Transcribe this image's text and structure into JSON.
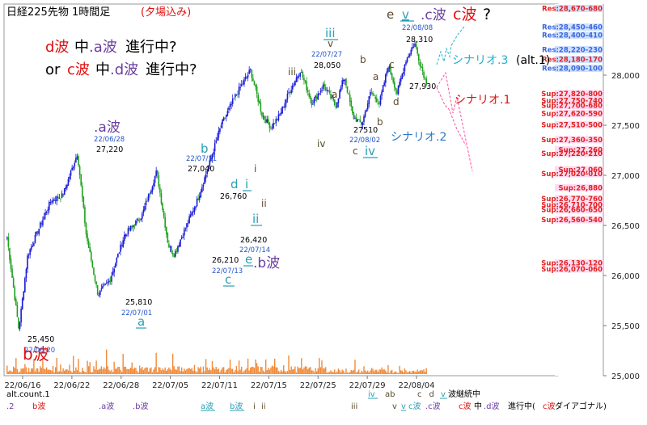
{
  "chart_data": {
    "type": "candlestick",
    "title": "日経225先物 1時間足",
    "title_note": "(夕場込み)",
    "y_ticks": [
      "28,000",
      "27,500",
      "27,000",
      "26,500",
      "26,000",
      "25,500",
      "25,000"
    ],
    "x_ticks": [
      "22/06/16",
      "22/06/22",
      "22/06/28",
      "22/07/05",
      "22/07/11",
      "22/07/15",
      "22/07/25",
      "22/07/29",
      "22/08/04"
    ],
    "headline": {
      "prefix": "e",
      "v_label": "v",
      "a": ".c波",
      "b": "c波",
      "c": "?"
    },
    "scenario_text": {
      "line1_a": "d波",
      "line1_b": "中",
      "line1_c": ".a波",
      "line1_d": "進行中?",
      "line2_a": "or ",
      "line2_b": "c波",
      "line2_c": "中",
      "line2_d": ".d波",
      "line2_e": "進行中?"
    },
    "scenarios": [
      "シナリオ.3",
      "(alt.1)",
      "シナリオ.1",
      "シナリオ.2"
    ],
    "resistance_levels": [
      "Res:28,670-680",
      "Res:28,450-460",
      "Res:28,400-410",
      "Res:28,220-230",
      "Res:28,180-170",
      "Res:28,090-100"
    ],
    "support_levels": [
      "Sup:27,820-800",
      "Sup:27,750-740",
      "Sup:27,700-680",
      "Sup:27,620-590",
      "Sup:27,510-500",
      "Sup:27,360-350",
      "Sup:27,260",
      "Sup:27,220-210",
      "Sup:27,060",
      "Sup:27,020-010",
      "Sup:26,880",
      "Sup:26,770-760",
      "Sup:26,710-700",
      "Sup:26,660-650",
      "Sup:26,560-540",
      "Sup:26,130-120",
      "Sup:26,070-060"
    ],
    "annotations": [
      {
        "id": "b-wave",
        "text": "b波"
      },
      {
        "id": "a-wave-main",
        "text": ".a波"
      },
      {
        "id": "a-date",
        "text": "22/06/28"
      },
      {
        "id": "a-price",
        "text": "27,220"
      },
      {
        "id": "low1-price",
        "text": "25,450"
      },
      {
        "id": "low1-date",
        "text": "22/06/20"
      },
      {
        "id": "low2-price",
        "text": "25,810"
      },
      {
        "id": "low2-date",
        "text": "22/07/01"
      },
      {
        "id": "low2-a",
        "text": "a"
      },
      {
        "id": "b-letter",
        "text": "b"
      },
      {
        "id": "b-date",
        "text": "22/07/11"
      },
      {
        "id": "b-price",
        "text": "27,040"
      },
      {
        "id": "d-letter",
        "text": "d"
      },
      {
        "id": "i-letter",
        "text": "i"
      },
      {
        "id": "i-small",
        "text": "i"
      },
      {
        "id": "ii-small",
        "text": "ii"
      },
      {
        "id": "p26760",
        "text": "26,760"
      },
      {
        "id": "ii-main",
        "text": "ii"
      },
      {
        "id": "p26420",
        "text": "26,420"
      },
      {
        "id": "d0714",
        "text": "22/07/14"
      },
      {
        "id": "p26210",
        "text": "26,210"
      },
      {
        "id": "d0713",
        "text": "22/07/13"
      },
      {
        "id": "e-letter",
        "text": "e"
      },
      {
        "id": "b-wave2",
        "text": ".b波"
      },
      {
        "id": "c-letter",
        "text": "c"
      },
      {
        "id": "iii-main",
        "text": "iii"
      },
      {
        "id": "v-small",
        "text": "v"
      },
      {
        "id": "d0727",
        "text": "22/07/27"
      },
      {
        "id": "p28050",
        "text": "28,050"
      },
      {
        "id": "iii-small",
        "text": "iii"
      },
      {
        "id": "iv-small",
        "text": "iv"
      },
      {
        "id": "p27510",
        "text": "27510"
      },
      {
        "id": "d0802",
        "text": "22/08/02"
      },
      {
        "id": "c-small",
        "text": "c"
      },
      {
        "id": "iv-main",
        "text": "iv"
      },
      {
        "id": "a-small",
        "text": "a"
      },
      {
        "id": "b-small",
        "text": "b"
      },
      {
        "id": "a-small2",
        "text": "a"
      },
      {
        "id": "b-small2",
        "text": "b"
      },
      {
        "id": "c-small2",
        "text": "c"
      },
      {
        "id": "d-small",
        "text": "d"
      },
      {
        "id": "d0808",
        "text": "22/08/08"
      },
      {
        "id": "p28310",
        "text": "28,310"
      },
      {
        "id": "p27930",
        "text": "27,930"
      }
    ],
    "legend_row1_left": "alt.count.1",
    "legend_row1_right": [
      {
        "text": "iv",
        "color": "#2a9fb5",
        "u": true
      },
      {
        "text": "ab",
        "color": "#5a4a2a"
      },
      {
        "text": "c",
        "color": "#5a4a2a"
      },
      {
        "text": "d",
        "color": "#5a4a2a"
      }
    ],
    "legend_row1_tail_v": "v",
    "legend_row1_tail_text": "波継続中",
    "legend_row2": [
      {
        "text": ".2",
        "color": "#6b3fa0"
      },
      {
        "text": "b波",
        "color": "#e01010"
      },
      {
        "text": ".a波",
        "color": "#6b3fa0"
      },
      {
        "text": ".b波",
        "color": "#6b3fa0"
      },
      {
        "text": "a波",
        "color": "#2a9fb5",
        "u": true
      },
      {
        "text": "b波",
        "color": "#2a9fb5",
        "u": true
      },
      {
        "text": "i",
        "color": "#5a4a2a"
      },
      {
        "text": "ii",
        "color": "#5a4a2a"
      },
      {
        "text": "iii",
        "color": "#5a4a2a"
      },
      {
        "text": "v",
        "color": "#5a4a2a"
      },
      {
        "text": "v",
        "color": "#2a9fb5",
        "u": true
      },
      {
        "text": "c波",
        "color": "#2a9fb5"
      },
      {
        "text": ".c波",
        "color": "#6b3fa0"
      },
      {
        "text": "c波",
        "color": "#e01010"
      },
      {
        "text": "中",
        "color": "#000000"
      },
      {
        "text": ".d波",
        "color": "#6b3fa0"
      },
      {
        "text": "進行中(",
        "color": "#000000"
      },
      {
        "text": "c波",
        "color": "#e01010"
      },
      {
        "text": "ダイアゴナル)",
        "color": "#000000"
      }
    ],
    "colors": {
      "candle_up": "#1a1ad8",
      "candle_down": "#1fa01f",
      "volume": "#f08a3a",
      "res_bg": "#d0e2ff",
      "res_text": "#3a66e0",
      "res_red_text": "#e02020",
      "sup_bg": "#ffdaf0",
      "sup_text": "#e02020",
      "purple": "#6b3fa0",
      "teal": "#2a9fb5",
      "red": "#e01010",
      "brown": "#5a4a2a"
    },
    "anchors": [
      [
        0,
        26380
      ],
      [
        0.04,
        25460
      ],
      [
        0.07,
        26200
      ],
      [
        0.11,
        26480
      ],
      [
        0.15,
        26750
      ],
      [
        0.19,
        26800
      ],
      [
        0.24,
        27220
      ],
      [
        0.27,
        26400
      ],
      [
        0.31,
        25810
      ],
      [
        0.35,
        25950
      ],
      [
        0.4,
        26400
      ],
      [
        0.46,
        26600
      ],
      [
        0.51,
        27040
      ],
      [
        0.55,
        26300
      ],
      [
        0.57,
        26210
      ],
      [
        0.6,
        26420
      ],
      [
        0.65,
        26760
      ],
      [
        0.69,
        27120
      ],
      [
        0.73,
        27500
      ],
      [
        0.78,
        27800
      ],
      [
        0.83,
        28050
      ],
      [
        0.87,
        27600
      ],
      [
        0.9,
        27480
      ],
      [
        0.93,
        27600
      ],
      [
        0.96,
        27820
      ],
      [
        1.0,
        28050
      ],
      [
        1.04,
        27720
      ],
      [
        1.08,
        27900
      ],
      [
        1.12,
        27690
      ],
      [
        1.15,
        27990
      ],
      [
        1.18,
        27580
      ],
      [
        1.21,
        27510
      ],
      [
        1.24,
        27830
      ],
      [
        1.27,
        27720
      ],
      [
        1.3,
        28100
      ],
      [
        1.33,
        27820
      ],
      [
        1.36,
        28150
      ],
      [
        1.39,
        28320
      ],
      [
        1.41,
        28100
      ],
      [
        1.43,
        27930
      ]
    ]
  }
}
